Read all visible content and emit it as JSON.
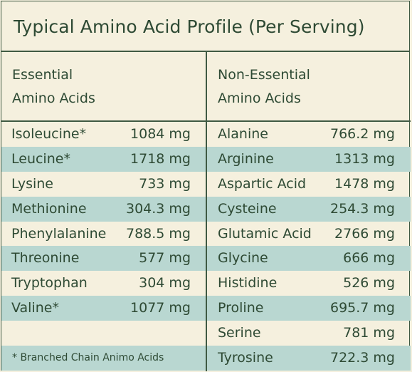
{
  "title": "Typical Amino Acid Profile (Per Serving)",
  "essential": {
    "header_line1": "Essential",
    "header_line2": "Amino Acids",
    "rows": [
      {
        "name": "Isoleucine*",
        "value": "1084 mg"
      },
      {
        "name": "Leucine*",
        "value": "1718 mg"
      },
      {
        "name": "Lysine",
        "value": "733 mg"
      },
      {
        "name": "Methionine",
        "value": "304.3 mg"
      },
      {
        "name": "Phenylalanine",
        "value": "788.5 mg"
      },
      {
        "name": "Threonine",
        "value": "577 mg"
      },
      {
        "name": "Tryptophan",
        "value": "304 mg"
      },
      {
        "name": "Valine*",
        "value": "1077 mg"
      }
    ],
    "footnote": "* Branched Chain Animo Acids"
  },
  "non_essential": {
    "header_line1": "Non-Essential",
    "header_line2": "Amino Acids",
    "rows": [
      {
        "name": "Alanine",
        "value": "766.2 mg"
      },
      {
        "name": "Arginine",
        "value": "1313 mg"
      },
      {
        "name": "Aspartic Acid",
        "value": "1478 mg"
      },
      {
        "name": "Cysteine",
        "value": "254.3 mg"
      },
      {
        "name": "Glutamic Acid",
        "value": "2766 mg"
      },
      {
        "name": "Glycine",
        "value": "666 mg"
      },
      {
        "name": "Histidine",
        "value": "526 mg"
      },
      {
        "name": "Proline",
        "value": "695.7 mg"
      },
      {
        "name": "Serine",
        "value": "781 mg"
      },
      {
        "name": "Tyrosine",
        "value": "722.3 mg"
      }
    ]
  },
  "colors": {
    "background": "#f5f0de",
    "row_shade": "#b9d7d1",
    "text": "#2e4a34",
    "border": "#3f5a43"
  }
}
